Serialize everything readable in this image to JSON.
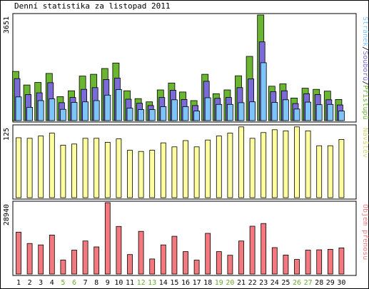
{
  "chart_data": {
    "type": "bar",
    "title": "Denní statistika za listopad 2011",
    "categories": [
      "1",
      "2",
      "3",
      "4",
      "5",
      "6",
      "7",
      "8",
      "9",
      "10",
      "11",
      "12",
      "13",
      "14",
      "15",
      "16",
      "17",
      "18",
      "19",
      "20",
      "21",
      "22",
      "23",
      "24",
      "25",
      "26",
      "27",
      "28",
      "29",
      "30"
    ],
    "weekend_days": [
      "5",
      "6",
      "12",
      "13",
      "19",
      "20",
      "26",
      "27"
    ],
    "colors": {
      "weekday_label": "#000000",
      "weekend_label": "#6aa832"
    },
    "panels": [
      {
        "id": "traffic",
        "max_label": "3651",
        "ylim": [
          0,
          3651
        ],
        "series": [
          {
            "name": "Přístupů",
            "color": "#6bb631",
            "values": [
              1700,
              1230,
              1320,
              1630,
              830,
              1030,
              1540,
              1600,
              1800,
              1990,
              1030,
              760,
              650,
              1060,
              1300,
              990,
              690,
              1600,
              930,
              1060,
              1550,
              2220,
              3651,
              1190,
              1270,
              780,
              1120,
              1080,
              1020,
              730
            ]
          },
          {
            "name": "Souborů",
            "color": "#7b6bd8",
            "values": [
              1450,
              900,
              960,
              1310,
              620,
              800,
              1080,
              1140,
              1420,
              1470,
              740,
              600,
              520,
              800,
              1050,
              730,
              520,
              1360,
              770,
              800,
              1140,
              1440,
              2720,
              1000,
              1030,
              590,
              930,
              900,
              720,
              540
            ]
          },
          {
            "name": "Stránek",
            "color": "#7ec4f8",
            "values": [
              820,
              460,
              690,
              750,
              390,
              630,
              650,
              690,
              880,
              1070,
              430,
              380,
              380,
              480,
              720,
              480,
              330,
              790,
              560,
              560,
              620,
              650,
              2000,
              630,
              720,
              400,
              640,
              550,
              560,
              330
            ]
          }
        ],
        "side_label": [
          "Stránek",
          "/",
          "Souborů",
          "/",
          "Přístupů"
        ]
      },
      {
        "id": "visits",
        "max_label": "125",
        "ylim": [
          0,
          125
        ],
        "series": [
          {
            "name": "Návštěv",
            "color": "#ffff9f",
            "values": [
              105,
              104,
              108,
              113,
              92,
              94,
              104,
              104,
              97,
              103,
              83,
              81,
              83,
              96,
              89,
              100,
              89,
              101,
              108,
              113,
              124,
              104,
              114,
              119,
              117,
              124,
              117,
              91,
              91,
              102
            ]
          }
        ],
        "side_label": [
          "Návštěv"
        ]
      },
      {
        "id": "volume",
        "max_label": "28940",
        "ylim": [
          0,
          28940
        ],
        "series": [
          {
            "name": "Objem přenosu",
            "color": "#f4797f",
            "values": [
              17000,
              12400,
              11800,
              15800,
              5700,
              9700,
              13400,
              11000,
              28940,
              19300,
              7900,
              17300,
              6100,
              11800,
              15300,
              9100,
              5600,
              16500,
              9100,
              7600,
              13400,
              19400,
              20500,
              10700,
              7700,
              5900,
              9700,
              9800,
              10000,
              10600
            ]
          }
        ],
        "side_label": [
          "Objem přenosu"
        ]
      }
    ]
  }
}
